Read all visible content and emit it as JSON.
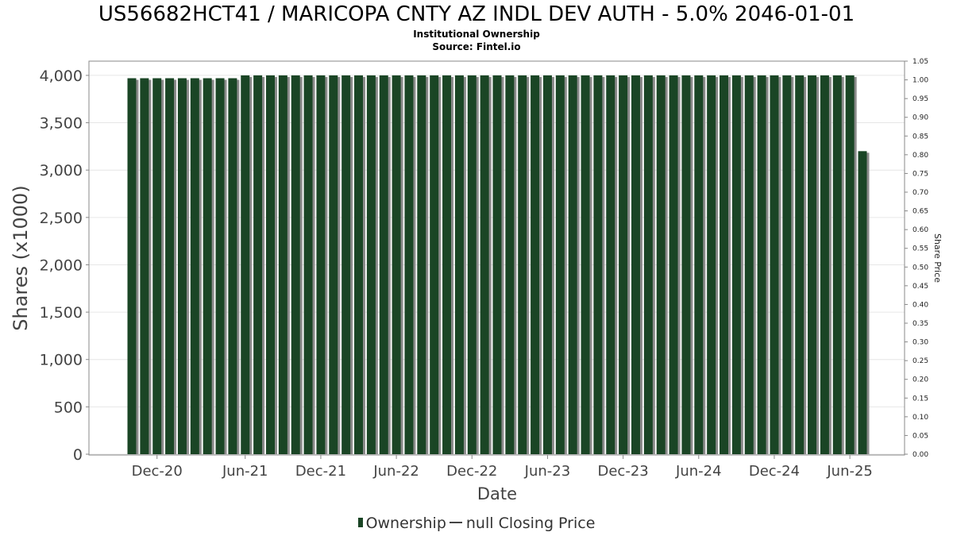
{
  "header": {
    "title": "US56682HCT41 / MARICOPA CNTY AZ INDL DEV AUTH - 5.0% 2046-01-01",
    "subtitle": "Institutional Ownership",
    "source": "Source: Fintel.io"
  },
  "legend": {
    "ownership_label": "Ownership",
    "price_label": "null Closing Price"
  },
  "colors": {
    "bar": "#1a4525",
    "bar_shadow": "#8a8a8a",
    "grid": "#e6e6e6",
    "axis": "#888888"
  },
  "chart_data": {
    "type": "bar",
    "xlabel": "Date",
    "ylabel": "Shares (x1000)",
    "y2label": "Share Price",
    "ylim": [
      0,
      4100
    ],
    "y2lim": [
      0,
      1.05
    ],
    "yticks": [
      0,
      500,
      1000,
      1500,
      2000,
      2500,
      3000,
      3500,
      4000
    ],
    "yticklabels": [
      "0",
      "500",
      "1,000",
      "1,500",
      "2,000",
      "2,500",
      "3,000",
      "3,500",
      "4,000"
    ],
    "y2ticks": [
      0,
      0.05,
      0.1,
      0.15,
      0.2,
      0.25,
      0.3,
      0.35,
      0.4,
      0.45,
      0.5,
      0.55,
      0.6,
      0.65,
      0.7,
      0.75,
      0.8,
      0.85,
      0.9,
      0.95,
      1.0,
      1.05
    ],
    "y2ticklabels": [
      "0.00",
      "0.05",
      "0.10",
      "0.15",
      "0.20",
      "0.25",
      "0.30",
      "0.35",
      "0.40",
      "0.45",
      "0.50",
      "0.55",
      "0.60",
      "0.65",
      "0.70",
      "0.75",
      "0.80",
      "0.85",
      "0.90",
      "0.95",
      "1.00",
      "1.05"
    ],
    "xticklabels": [
      "Dec-20",
      "Jun-21",
      "Dec-21",
      "Jun-22",
      "Dec-22",
      "Jun-23",
      "Dec-23",
      "Jun-24",
      "Dec-24",
      "Jun-25"
    ],
    "xtickbars": [
      2,
      9,
      15,
      21,
      27,
      33,
      39,
      45,
      51,
      57
    ],
    "grid": true,
    "series": [
      {
        "name": "Ownership",
        "values": [
          3970,
          3970,
          3970,
          3970,
          3970,
          3970,
          3970,
          3970,
          3970,
          4000,
          4000,
          4000,
          4000,
          4000,
          4000,
          4000,
          4000,
          4000,
          4000,
          4000,
          4000,
          4000,
          4000,
          4000,
          4000,
          4000,
          4000,
          4000,
          4000,
          4000,
          4000,
          4000,
          4000,
          4000,
          4000,
          4000,
          4000,
          4000,
          4000,
          4000,
          4000,
          4000,
          4000,
          4000,
          4000,
          4000,
          4000,
          4000,
          4000,
          4000,
          4000,
          4000,
          4000,
          4000,
          4000,
          4000,
          4000,
          4000,
          3200
        ]
      }
    ]
  }
}
